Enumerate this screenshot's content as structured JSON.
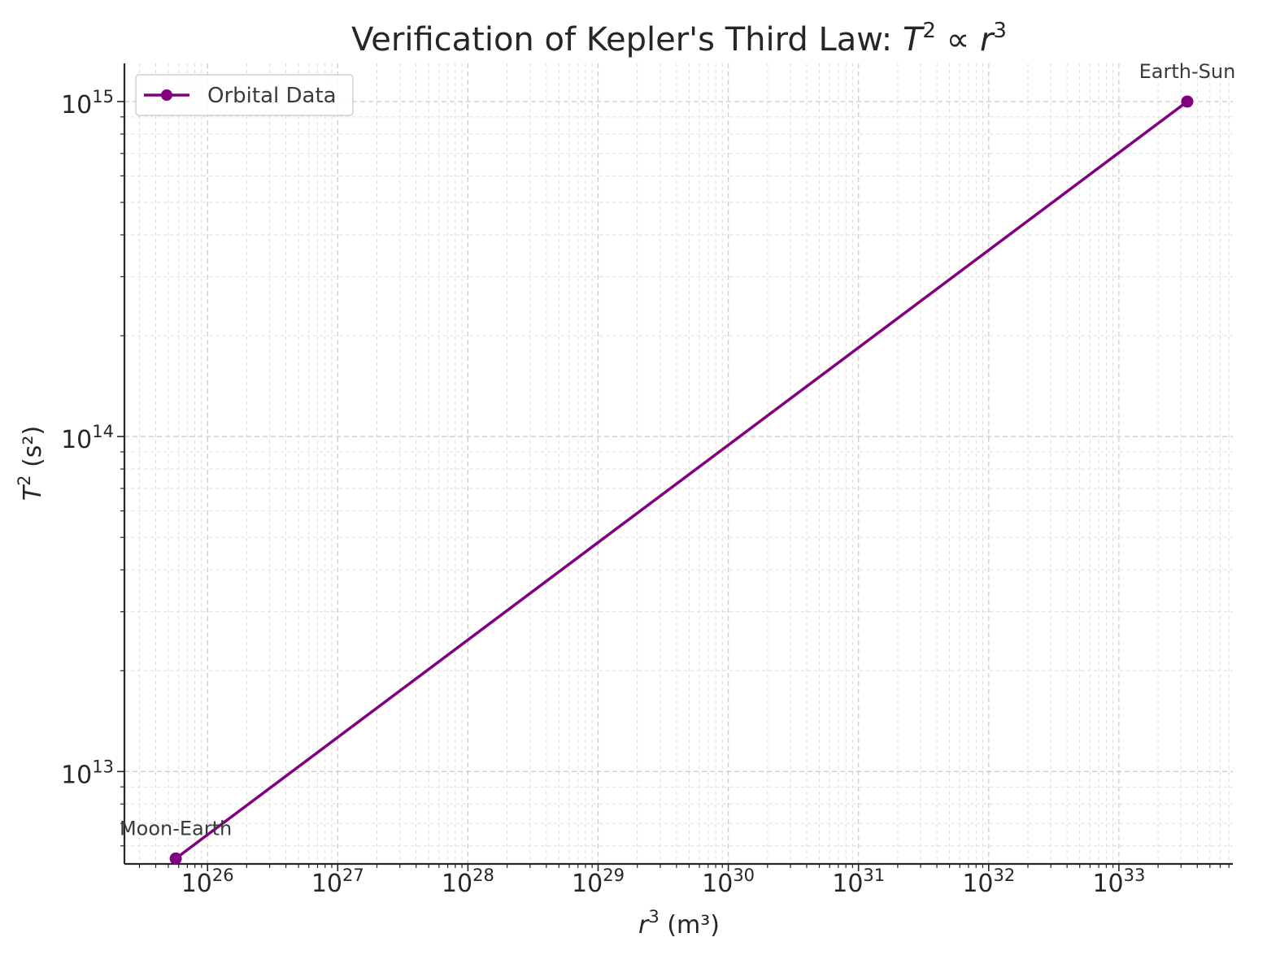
{
  "chart_data": {
    "type": "line",
    "title": "Verification of Kepler's Third Law: ",
    "title_math": {
      "base1": "T",
      "exp1": "2",
      "prop": " ∝ ",
      "base2": "r",
      "exp2": "3"
    },
    "xlabel": {
      "base": "r",
      "exp": "3",
      "rest": " (m³)"
    },
    "ylabel": {
      "base": "T",
      "exp": "2",
      "rest": " (s²)"
    },
    "xscale": "log",
    "yscale": "log",
    "xlim": [
      2.3e+25,
      7.5e+33
    ],
    "ylim": [
      5300000000000.0,
      1300000000000000.0
    ],
    "x_ticks": [
      {
        "base": "10",
        "exp": "26",
        "value": 1e+26
      },
      {
        "base": "10",
        "exp": "27",
        "value": 1e+27
      },
      {
        "base": "10",
        "exp": "28",
        "value": 1e+28
      },
      {
        "base": "10",
        "exp": "29",
        "value": 1e+29
      },
      {
        "base": "10",
        "exp": "30",
        "value": 1e+30
      },
      {
        "base": "10",
        "exp": "31",
        "value": 1e+31
      },
      {
        "base": "10",
        "exp": "32",
        "value": 1e+32
      },
      {
        "base": "10",
        "exp": "33",
        "value": 1e+33
      }
    ],
    "y_ticks": [
      {
        "base": "10",
        "exp": "13",
        "value": 10000000000000.0
      },
      {
        "base": "10",
        "exp": "14",
        "value": 100000000000000.0
      },
      {
        "base": "10",
        "exp": "15",
        "value": 1000000000000000.0
      }
    ],
    "grid": true,
    "legend": {
      "position": "top-left",
      "entries": [
        "Orbital Data"
      ]
    },
    "series": [
      {
        "name": "Orbital Data",
        "color": "#800080",
        "x": [
          5.7e+25,
          3.35e+33
        ],
        "y": [
          5500000000000.0,
          1000000000000000.0
        ],
        "point_labels": [
          "Moon-Earth",
          "Earth-Sun"
        ]
      }
    ]
  }
}
